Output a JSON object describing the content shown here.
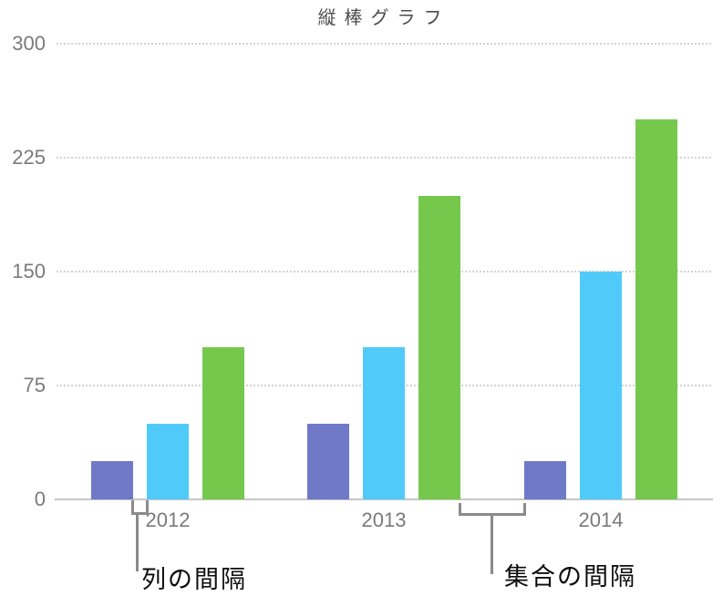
{
  "chart_data": {
    "type": "bar",
    "title": "縦棒グラフ",
    "categories": [
      "2012",
      "2013",
      "2014"
    ],
    "series": [
      {
        "color": "#6F79C8",
        "values": [
          25,
          50,
          25
        ]
      },
      {
        "color": "#50CBF9",
        "values": [
          50,
          100,
          150
        ]
      },
      {
        "color": "#76C84D",
        "values": [
          100,
          200,
          250
        ]
      }
    ],
    "y_axis": {
      "ticks": [
        0,
        75,
        150,
        225,
        300
      ],
      "min": 0,
      "max": 300
    },
    "xlabel": "",
    "ylabel": "",
    "legend": "none",
    "grid": "horizontal-dotted",
    "annotations": [
      {
        "label": "列の間隔",
        "target": "column-gap"
      },
      {
        "label": "集合の間隔",
        "target": "cluster-gap"
      }
    ]
  }
}
